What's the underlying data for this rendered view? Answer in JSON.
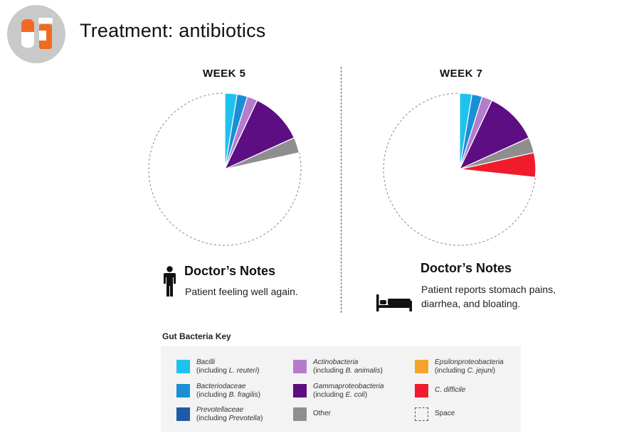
{
  "header": {
    "title": "Treatment: antibiotics",
    "icon": "pill-bottle-icon"
  },
  "colors": {
    "bacilli": "#1ec2ee",
    "bacteriodaceae": "#1a8fd6",
    "prevotellaceae": "#1f5aa8",
    "actinobacteria": "#b47ccc",
    "gammaproteobacteria": "#5c0e82",
    "other": "#8e8e8e",
    "epsilonproteobacteria": "#f5a42b",
    "c_difficile": "#f01c2c",
    "space": "#ffffff",
    "icon_bg": "#c9c9c9",
    "icon_orange": "#f06b22"
  },
  "chart_data": [
    {
      "type": "pie",
      "title": "WEEK 5",
      "slices": [
        {
          "name": "Bacilli",
          "value": 2.6,
          "color": "#1ec2ee"
        },
        {
          "name": "Bacteriodaceae",
          "value": 2.2,
          "color": "#1a8fd6"
        },
        {
          "name": "Actinobacteria",
          "value": 2.2,
          "color": "#b47ccc"
        },
        {
          "name": "Gammaproteobacteria",
          "value": 11.2,
          "color": "#5c0e82"
        },
        {
          "name": "Other",
          "value": 3.3,
          "color": "#8e8e8e"
        },
        {
          "name": "Space",
          "value": 78.5,
          "color": "none"
        }
      ]
    },
    {
      "type": "pie",
      "title": "WEEK 7",
      "slices": [
        {
          "name": "Bacilli",
          "value": 2.6,
          "color": "#1ec2ee"
        },
        {
          "name": "Bacteriodaceae",
          "value": 2.2,
          "color": "#1a8fd6"
        },
        {
          "name": "Actinobacteria",
          "value": 2.2,
          "color": "#b47ccc"
        },
        {
          "name": "Gammaproteobacteria",
          "value": 11.2,
          "color": "#5c0e82"
        },
        {
          "name": "Other",
          "value": 3.3,
          "color": "#8e8e8e"
        },
        {
          "name": "C. difficile",
          "value": 5.2,
          "color": "#f01c2c"
        },
        {
          "name": "Space",
          "value": 73.3,
          "color": "none"
        }
      ]
    }
  ],
  "panels": [
    {
      "week": "WEEK 5",
      "notes_title": "Doctor’s Notes",
      "notes_lines": [
        "Patient feeling well again."
      ],
      "icon": "standing-person-icon"
    },
    {
      "week": "WEEK 7",
      "notes_title": "Doctor’s Notes",
      "notes_lines": [
        "Patient reports stomach pains,",
        "diarrhea, and bloating."
      ],
      "icon": "bed-icon"
    }
  ],
  "key": {
    "title": "Gut Bacteria Key",
    "items": [
      {
        "name": "Bacilli",
        "sub_prefix": "(including ",
        "sub_italic": "L. reuteri",
        "sub_suffix": ")",
        "color": "#1ec2ee",
        "italic": true
      },
      {
        "name": "Bacteriodaceae",
        "sub_prefix": "(including ",
        "sub_italic": "B. fragilis",
        "sub_suffix": ")",
        "color": "#1a8fd6",
        "italic": true
      },
      {
        "name": "Prevotellaceae",
        "sub_prefix": "(including ",
        "sub_italic": "Prevotella",
        "sub_suffix": ")",
        "color": "#1f5aa8",
        "italic": true
      },
      {
        "name": "Actinobacteria",
        "sub_prefix": "(including ",
        "sub_italic": "B. animalis",
        "sub_suffix": ")",
        "color": "#b47ccc",
        "italic": true
      },
      {
        "name": "Gammaproteobacteria",
        "sub_prefix": "(including ",
        "sub_italic": "E. coli",
        "sub_suffix": ")",
        "color": "#5c0e82",
        "italic": true
      },
      {
        "name": "Other",
        "sub_prefix": "",
        "sub_italic": "",
        "sub_suffix": "",
        "color": "#8e8e8e",
        "italic": false
      },
      {
        "name": "Epsilonproteobacteria",
        "sub_prefix": "(including ",
        "sub_italic": "C. jejuni",
        "sub_suffix": ")",
        "color": "#f5a42b",
        "italic": true
      },
      {
        "name": "C. difficile",
        "sub_prefix": "",
        "sub_italic": "",
        "sub_suffix": "",
        "color": "#f01c2c",
        "italic": true
      },
      {
        "name": "Space",
        "sub_prefix": "",
        "sub_italic": "",
        "sub_suffix": "",
        "color": "none",
        "italic": false
      }
    ]
  }
}
